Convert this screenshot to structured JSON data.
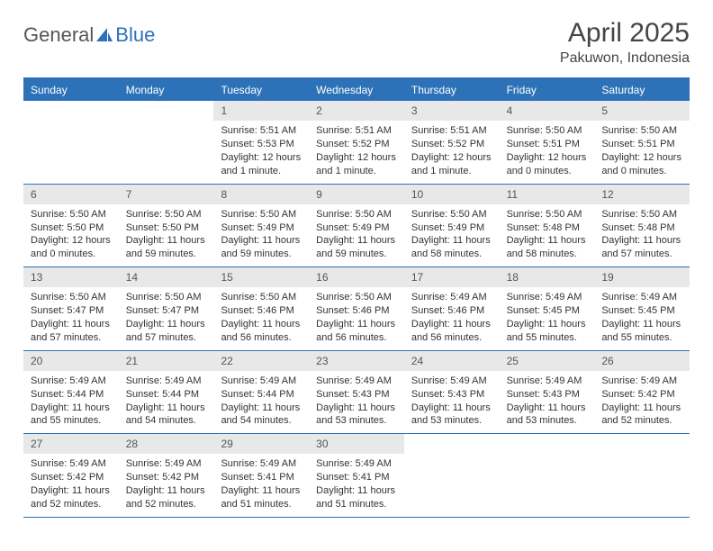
{
  "brand": {
    "part1": "General",
    "part2": "Blue"
  },
  "title": "April 2025",
  "location": "Pakuwon, Indonesia",
  "colors": {
    "header_bg": "#2d72b8",
    "header_text": "#ffffff",
    "daynum_bg": "#e8e8e8",
    "text": "#333333",
    "page_bg": "#ffffff"
  },
  "typography": {
    "title_fontsize": 30,
    "location_fontsize": 16,
    "dayhdr_fontsize": 12,
    "cell_fontsize": 11
  },
  "day_headers": [
    "Sunday",
    "Monday",
    "Tuesday",
    "Wednesday",
    "Thursday",
    "Friday",
    "Saturday"
  ],
  "weeks": [
    [
      null,
      null,
      {
        "n": "1",
        "sr": "Sunrise: 5:51 AM",
        "ss": "Sunset: 5:53 PM",
        "dl": "Daylight: 12 hours and 1 minute."
      },
      {
        "n": "2",
        "sr": "Sunrise: 5:51 AM",
        "ss": "Sunset: 5:52 PM",
        "dl": "Daylight: 12 hours and 1 minute."
      },
      {
        "n": "3",
        "sr": "Sunrise: 5:51 AM",
        "ss": "Sunset: 5:52 PM",
        "dl": "Daylight: 12 hours and 1 minute."
      },
      {
        "n": "4",
        "sr": "Sunrise: 5:50 AM",
        "ss": "Sunset: 5:51 PM",
        "dl": "Daylight: 12 hours and 0 minutes."
      },
      {
        "n": "5",
        "sr": "Sunrise: 5:50 AM",
        "ss": "Sunset: 5:51 PM",
        "dl": "Daylight: 12 hours and 0 minutes."
      }
    ],
    [
      {
        "n": "6",
        "sr": "Sunrise: 5:50 AM",
        "ss": "Sunset: 5:50 PM",
        "dl": "Daylight: 12 hours and 0 minutes."
      },
      {
        "n": "7",
        "sr": "Sunrise: 5:50 AM",
        "ss": "Sunset: 5:50 PM",
        "dl": "Daylight: 11 hours and 59 minutes."
      },
      {
        "n": "8",
        "sr": "Sunrise: 5:50 AM",
        "ss": "Sunset: 5:49 PM",
        "dl": "Daylight: 11 hours and 59 minutes."
      },
      {
        "n": "9",
        "sr": "Sunrise: 5:50 AM",
        "ss": "Sunset: 5:49 PM",
        "dl": "Daylight: 11 hours and 59 minutes."
      },
      {
        "n": "10",
        "sr": "Sunrise: 5:50 AM",
        "ss": "Sunset: 5:49 PM",
        "dl": "Daylight: 11 hours and 58 minutes."
      },
      {
        "n": "11",
        "sr": "Sunrise: 5:50 AM",
        "ss": "Sunset: 5:48 PM",
        "dl": "Daylight: 11 hours and 58 minutes."
      },
      {
        "n": "12",
        "sr": "Sunrise: 5:50 AM",
        "ss": "Sunset: 5:48 PM",
        "dl": "Daylight: 11 hours and 57 minutes."
      }
    ],
    [
      {
        "n": "13",
        "sr": "Sunrise: 5:50 AM",
        "ss": "Sunset: 5:47 PM",
        "dl": "Daylight: 11 hours and 57 minutes."
      },
      {
        "n": "14",
        "sr": "Sunrise: 5:50 AM",
        "ss": "Sunset: 5:47 PM",
        "dl": "Daylight: 11 hours and 57 minutes."
      },
      {
        "n": "15",
        "sr": "Sunrise: 5:50 AM",
        "ss": "Sunset: 5:46 PM",
        "dl": "Daylight: 11 hours and 56 minutes."
      },
      {
        "n": "16",
        "sr": "Sunrise: 5:50 AM",
        "ss": "Sunset: 5:46 PM",
        "dl": "Daylight: 11 hours and 56 minutes."
      },
      {
        "n": "17",
        "sr": "Sunrise: 5:49 AM",
        "ss": "Sunset: 5:46 PM",
        "dl": "Daylight: 11 hours and 56 minutes."
      },
      {
        "n": "18",
        "sr": "Sunrise: 5:49 AM",
        "ss": "Sunset: 5:45 PM",
        "dl": "Daylight: 11 hours and 55 minutes."
      },
      {
        "n": "19",
        "sr": "Sunrise: 5:49 AM",
        "ss": "Sunset: 5:45 PM",
        "dl": "Daylight: 11 hours and 55 minutes."
      }
    ],
    [
      {
        "n": "20",
        "sr": "Sunrise: 5:49 AM",
        "ss": "Sunset: 5:44 PM",
        "dl": "Daylight: 11 hours and 55 minutes."
      },
      {
        "n": "21",
        "sr": "Sunrise: 5:49 AM",
        "ss": "Sunset: 5:44 PM",
        "dl": "Daylight: 11 hours and 54 minutes."
      },
      {
        "n": "22",
        "sr": "Sunrise: 5:49 AM",
        "ss": "Sunset: 5:44 PM",
        "dl": "Daylight: 11 hours and 54 minutes."
      },
      {
        "n": "23",
        "sr": "Sunrise: 5:49 AM",
        "ss": "Sunset: 5:43 PM",
        "dl": "Daylight: 11 hours and 53 minutes."
      },
      {
        "n": "24",
        "sr": "Sunrise: 5:49 AM",
        "ss": "Sunset: 5:43 PM",
        "dl": "Daylight: 11 hours and 53 minutes."
      },
      {
        "n": "25",
        "sr": "Sunrise: 5:49 AM",
        "ss": "Sunset: 5:43 PM",
        "dl": "Daylight: 11 hours and 53 minutes."
      },
      {
        "n": "26",
        "sr": "Sunrise: 5:49 AM",
        "ss": "Sunset: 5:42 PM",
        "dl": "Daylight: 11 hours and 52 minutes."
      }
    ],
    [
      {
        "n": "27",
        "sr": "Sunrise: 5:49 AM",
        "ss": "Sunset: 5:42 PM",
        "dl": "Daylight: 11 hours and 52 minutes."
      },
      {
        "n": "28",
        "sr": "Sunrise: 5:49 AM",
        "ss": "Sunset: 5:42 PM",
        "dl": "Daylight: 11 hours and 52 minutes."
      },
      {
        "n": "29",
        "sr": "Sunrise: 5:49 AM",
        "ss": "Sunset: 5:41 PM",
        "dl": "Daylight: 11 hours and 51 minutes."
      },
      {
        "n": "30",
        "sr": "Sunrise: 5:49 AM",
        "ss": "Sunset: 5:41 PM",
        "dl": "Daylight: 11 hours and 51 minutes."
      },
      null,
      null,
      null
    ]
  ]
}
